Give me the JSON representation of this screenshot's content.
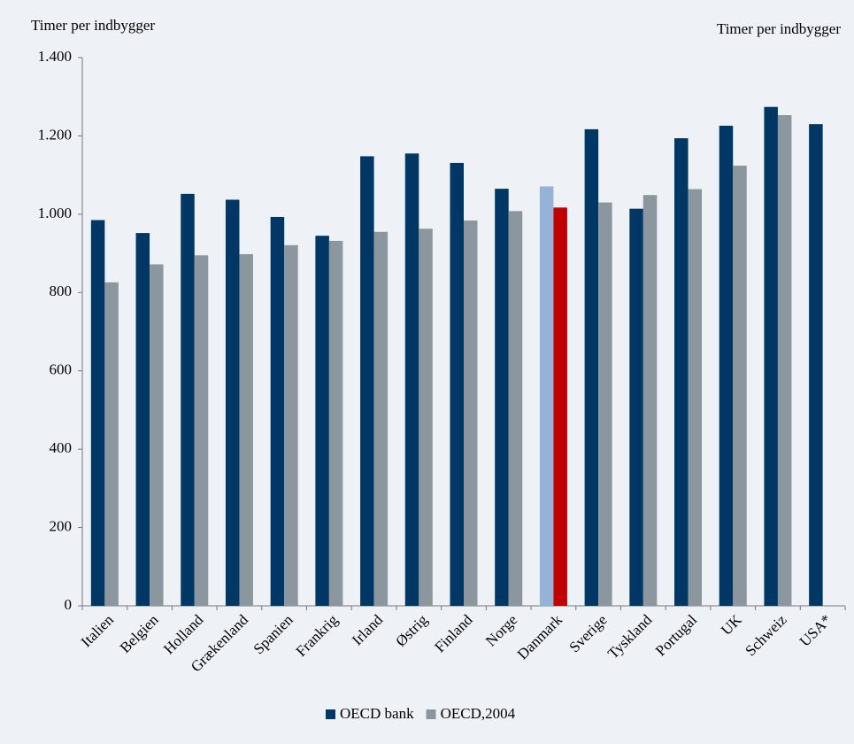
{
  "chart_data": {
    "type": "bar",
    "y_label": "Timer per indbygger",
    "y2_label": "Timer per indbygger",
    "categories": [
      "Italien",
      "Belgien",
      "Holland",
      "Grækenland",
      "Spanien",
      "Frankrig",
      "Irland",
      "Østrig",
      "Finland",
      "Norge",
      "Danmark",
      "Sverige",
      "Tyskland",
      "Portugal",
      "UK",
      "Schweiz",
      "USA*"
    ],
    "series": [
      {
        "name": "OECD bank",
        "color": "#003764",
        "values": [
          985,
          952,
          1052,
          1037,
          993,
          945,
          1148,
          1155,
          1131,
          1065,
          1071,
          1217,
          1014,
          1194,
          1226,
          1274,
          1230
        ],
        "colors": [
          "#003764",
          "#003764",
          "#003764",
          "#003764",
          "#003764",
          "#003764",
          "#003764",
          "#003764",
          "#003764",
          "#003764",
          "#95b3d7",
          "#003764",
          "#003764",
          "#003764",
          "#003764",
          "#003764",
          "#003764"
        ]
      },
      {
        "name": "OECD,2004",
        "color": "#8c969e",
        "values": [
          826,
          872,
          895,
          898,
          921,
          932,
          955,
          963,
          984,
          1008,
          1017,
          1030,
          1049,
          1064,
          1124,
          1253,
          null
        ],
        "colors": [
          "#8c969e",
          "#8c969e",
          "#8c969e",
          "#8c969e",
          "#8c969e",
          "#8c969e",
          "#8c969e",
          "#8c969e",
          "#8c969e",
          "#8c969e",
          "#c00000",
          "#8c969e",
          "#8c969e",
          "#8c969e",
          "#8c969e",
          "#8c969e",
          "#8c969e"
        ]
      }
    ],
    "ylim": [
      0,
      1400
    ],
    "yticks": [
      0,
      200,
      400,
      600,
      800,
      {
        "value": 1000,
        "label": "1.000"
      },
      {
        "value": 1200,
        "label": "1.200"
      },
      {
        "value": 1400,
        "label": "1.400"
      }
    ],
    "legend": "bottom"
  }
}
